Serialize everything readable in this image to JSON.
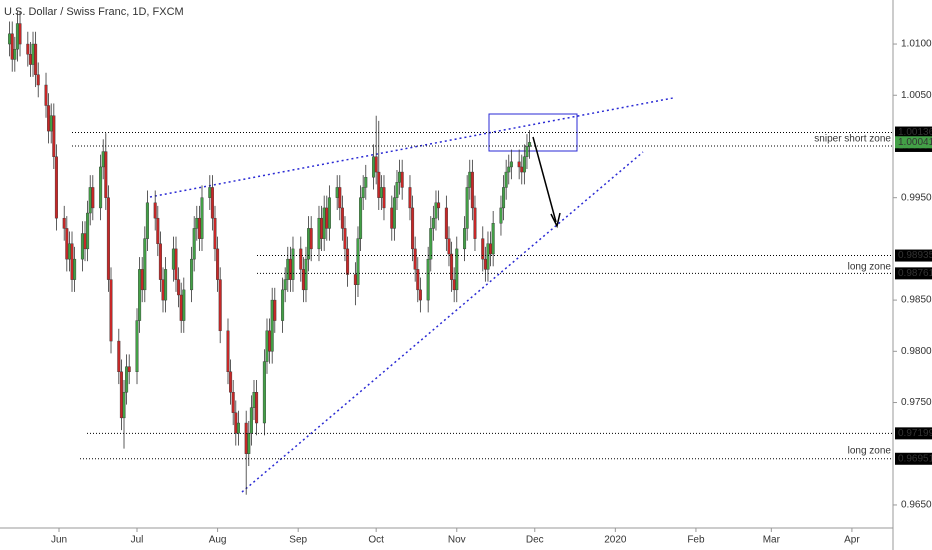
{
  "chart_data": {
    "type": "candlestick",
    "title": "U.S. Dollar / Swiss Franc, 1D, FXCM",
    "up_color": "#43a047",
    "down_color": "#c62828",
    "xlim": [
      129.3,
      472.8
    ],
    "ylim": [
      0.96275,
      1.0143
    ],
    "xticks": [
      {
        "value": 152,
        "label": "Jun"
      },
      {
        "value": 182,
        "label": "Jul"
      },
      {
        "value": 213,
        "label": "Aug"
      },
      {
        "value": 244,
        "label": "Sep"
      },
      {
        "value": 274,
        "label": "Oct"
      },
      {
        "value": 305,
        "label": "Nov"
      },
      {
        "value": 335,
        "label": "Dec"
      },
      {
        "value": 366,
        "label": "2020"
      },
      {
        "value": 397,
        "label": "Feb"
      },
      {
        "value": 426,
        "label": "Mar"
      },
      {
        "value": 457,
        "label": "Apr"
      }
    ],
    "yticks": [
      {
        "value": 1.01,
        "label": "1.01000"
      },
      {
        "value": 1.005,
        "label": "1.00500"
      },
      {
        "value": 0.995,
        "label": "0.99500"
      },
      {
        "value": 0.985,
        "label": "0.98500"
      },
      {
        "value": 0.98,
        "label": "0.98000"
      },
      {
        "value": 0.975,
        "label": "0.97500"
      },
      {
        "value": 0.965,
        "label": "0.96500"
      }
    ],
    "levels": [
      1.00136,
      1.00005,
      0.98935,
      0.98761,
      0.97199,
      0.96951
    ],
    "current_price": 1.00041,
    "annotations": [
      "sniper short zone",
      "long zone",
      "long zone"
    ],
    "x": [
      133,
      134,
      135,
      136,
      137,
      140,
      141,
      142,
      143,
      144,
      147,
      148,
      149,
      150,
      151,
      154,
      155,
      156,
      157,
      158,
      161,
      162,
      163,
      164,
      165,
      168,
      169,
      170,
      171,
      172,
      175,
      176,
      177,
      178,
      179,
      182,
      183,
      184,
      185,
      186,
      189,
      190,
      191,
      192,
      193,
      196,
      197,
      198,
      199,
      200,
      203,
      204,
      205,
      206,
      207,
      210,
      211,
      212,
      213,
      214,
      217,
      218,
      219,
      220,
      221,
      224,
      225,
      226,
      227,
      228,
      231,
      232,
      233,
      234,
      235,
      238,
      239,
      240,
      241,
      242,
      245,
      246,
      247,
      248,
      249,
      252,
      253,
      254,
      255,
      256,
      259,
      260,
      261,
      262,
      263,
      266,
      267,
      268,
      269,
      270,
      273,
      274,
      275,
      276,
      277,
      280,
      281,
      282,
      283,
      284,
      287,
      288,
      289,
      290,
      291,
      294,
      295,
      296,
      297,
      298,
      301,
      302,
      303,
      304,
      305,
      308,
      309,
      310,
      311,
      312,
      315,
      316,
      317,
      318,
      319,
      322,
      323,
      324,
      325,
      326,
      329,
      330,
      331,
      332,
      333
    ],
    "open": [
      1.01,
      1.011,
      1.0085,
      1.0095,
      1.012,
      1.01,
      1.009,
      1.008,
      1.01,
      1.007,
      1.006,
      1.004,
      1.0015,
      1.003,
      0.999,
      0.993,
      0.992,
      0.989,
      0.9905,
      0.987,
      0.989,
      0.9915,
      0.99,
      0.9935,
      0.996,
      0.994,
      0.998,
      0.9995,
      0.995,
      0.987,
      0.981,
      0.978,
      0.9735,
      0.976,
      0.9785,
      0.978,
      0.983,
      0.988,
      0.986,
      0.991,
      0.9945,
      0.993,
      0.9905,
      0.987,
      0.985,
      0.988,
      0.99,
      0.987,
      0.9855,
      0.983,
      0.986,
      0.989,
      0.992,
      0.993,
      0.991,
      0.995,
      0.996,
      0.993,
      0.99,
      0.987,
      0.982,
      0.978,
      0.976,
      0.974,
      0.972,
      0.973,
      0.97,
      0.972,
      0.9745,
      0.976,
      0.973,
      0.979,
      0.982,
      0.98,
      0.985,
      0.983,
      0.986,
      0.987,
      0.989,
      0.987,
      0.99,
      0.988,
      0.986,
      0.989,
      0.992,
      0.99,
      0.993,
      0.991,
      0.994,
      0.992,
      0.995,
      0.996,
      0.994,
      0.992,
      0.99,
      0.9875,
      0.9865,
      0.991,
      0.995,
      0.996,
      0.997,
      0.999,
      0.9975,
      0.995,
      0.996,
      0.994,
      0.992,
      0.995,
      0.9965,
      0.9975,
      0.996,
      0.994,
      0.99,
      0.988,
      0.986,
      0.985,
      0.989,
      0.992,
      0.993,
      0.9945,
      0.994,
      0.991,
      0.9895,
      0.987,
      0.986,
      0.99,
      0.992,
      0.996,
      0.9975,
      0.994,
      0.991,
      0.989,
      0.988,
      0.9905,
      0.9895,
      0.9925,
      0.994,
      0.996,
      0.9975,
      0.998,
      0.9985,
      0.998,
      0.9975,
      0.999,
      1.0
    ],
    "high": [
      1.0122,
      1.0122,
      1.0107,
      1.0132,
      1.0132,
      1.0112,
      1.0102,
      1.0112,
      1.0112,
      1.0082,
      1.0072,
      1.0052,
      1.0042,
      1.0042,
      1.0002,
      0.9942,
      0.9932,
      0.9917,
      0.9917,
      0.9902,
      0.9927,
      0.9927,
      0.9947,
      0.9972,
      0.9972,
      0.9992,
      1.0007,
      1.0013,
      0.9962,
      0.9882,
      0.9822,
      0.9792,
      0.9772,
      0.9797,
      0.9797,
      0.9842,
      0.9892,
      0.9892,
      0.9922,
      0.9957,
      0.9957,
      0.9942,
      0.9917,
      0.9882,
      0.9892,
      0.9912,
      0.9912,
      0.9882,
      0.9867,
      0.9872,
      0.9902,
      0.9932,
      0.9942,
      0.9942,
      0.9962,
      0.9972,
      0.9972,
      0.9942,
      0.9912,
      0.9882,
      0.9832,
      0.9792,
      0.9772,
      0.9752,
      0.9742,
      0.9742,
      0.9732,
      0.9757,
      0.9772,
      0.9772,
      0.9802,
      0.9832,
      0.9832,
      0.9862,
      0.9862,
      0.9872,
      0.9882,
      0.9902,
      0.9902,
      0.9912,
      0.9912,
      0.9892,
      0.9902,
      0.9932,
      0.9932,
      0.9942,
      0.9942,
      0.9952,
      0.9952,
      0.9962,
      0.9972,
      0.9972,
      0.9952,
      0.9932,
      0.9912,
      0.9887,
      0.9922,
      0.9962,
      0.9972,
      0.9982,
      1.0002,
      1.003,
      1.0025,
      0.9972,
      0.9972,
      0.9952,
      0.9962,
      0.9977,
      0.9987,
      0.9987,
      0.9972,
      0.9952,
      0.9912,
      0.9892,
      0.9872,
      0.9902,
      0.9932,
      0.9942,
      0.9957,
      0.9957,
      0.9952,
      0.9922,
      0.9907,
      0.9882,
      0.9912,
      0.9932,
      0.9972,
      0.9987,
      0.9987,
      0.9952,
      0.9922,
      0.9902,
      0.9917,
      0.9917,
      0.9937,
      0.9952,
      0.9972,
      0.9987,
      0.9992,
      0.9997,
      0.9997,
      0.9992,
      1.0002,
      1.0012,
      1.0016
    ],
    "low": [
      1.0088,
      1.0073,
      1.0073,
      1.0083,
      1.0088,
      1.0078,
      1.0068,
      1.0068,
      1.0058,
      1.0048,
      1.0028,
      1.0003,
      1.0003,
      0.9978,
      0.9918,
      0.9908,
      0.9878,
      0.9878,
      0.9858,
      0.9858,
      0.9878,
      0.9888,
      0.9888,
      0.9923,
      0.9928,
      0.9928,
      0.9968,
      0.9938,
      0.9858,
      0.9798,
      0.9768,
      0.9723,
      0.9705,
      0.9748,
      0.9768,
      0.9768,
      0.9818,
      0.9848,
      0.9848,
      0.9898,
      0.9918,
      0.9893,
      0.9858,
      0.9838,
      0.9838,
      0.9868,
      0.9858,
      0.9843,
      0.9818,
      0.9818,
      0.9848,
      0.9878,
      0.9908,
      0.9898,
      0.9898,
      0.9938,
      0.9918,
      0.9888,
      0.9858,
      0.9808,
      0.9768,
      0.9748,
      0.9728,
      0.9708,
      0.9708,
      0.966,
      0.9688,
      0.9708,
      0.9733,
      0.9718,
      0.9718,
      0.9778,
      0.9788,
      0.9788,
      0.9818,
      0.9818,
      0.9848,
      0.9858,
      0.9858,
      0.9858,
      0.9868,
      0.9848,
      0.9848,
      0.9878,
      0.9888,
      0.9888,
      0.9898,
      0.9898,
      0.9908,
      0.9908,
      0.9938,
      0.9928,
      0.9908,
      0.9888,
      0.9863,
      0.9845,
      0.9853,
      0.9898,
      0.9938,
      0.9948,
      0.9958,
      0.9963,
      0.9938,
      0.9938,
      0.9928,
      0.9908,
      0.9908,
      0.9938,
      0.9953,
      0.9948,
      0.9928,
      0.9888,
      0.9868,
      0.9848,
      0.9838,
      0.9838,
      0.9878,
      0.9908,
      0.9918,
      0.9928,
      0.9898,
      0.9883,
      0.9858,
      0.9848,
      0.9848,
      0.9888,
      0.9908,
      0.9948,
      0.9928,
      0.9898,
      0.9878,
      0.9868,
      0.9868,
      0.9883,
      0.9883,
      0.9913,
      0.9928,
      0.9948,
      0.9963,
      0.9968,
      0.9968,
      0.9963,
      0.9963,
      0.9978,
      0.9988
    ],
    "close": [
      1.011,
      1.0085,
      1.0095,
      1.012,
      1.01,
      1.009,
      1.008,
      1.01,
      1.007,
      1.006,
      1.004,
      1.0015,
      1.003,
      0.999,
      0.993,
      0.992,
      0.989,
      0.9905,
      0.987,
      0.989,
      0.9915,
      0.99,
      0.9935,
      0.996,
      0.994,
      0.998,
      0.9995,
      0.995,
      0.987,
      0.981,
      0.978,
      0.9735,
      0.976,
      0.9785,
      0.978,
      0.983,
      0.988,
      0.986,
      0.991,
      0.9945,
      0.993,
      0.9905,
      0.987,
      0.985,
      0.988,
      0.99,
      0.987,
      0.9855,
      0.983,
      0.986,
      0.989,
      0.992,
      0.993,
      0.991,
      0.995,
      0.996,
      0.993,
      0.99,
      0.987,
      0.982,
      0.978,
      0.976,
      0.974,
      0.972,
      0.973,
      0.97,
      0.972,
      0.9745,
      0.976,
      0.973,
      0.979,
      0.982,
      0.98,
      0.985,
      0.983,
      0.986,
      0.987,
      0.989,
      0.987,
      0.99,
      0.988,
      0.986,
      0.989,
      0.992,
      0.99,
      0.993,
      0.991,
      0.994,
      0.992,
      0.995,
      0.996,
      0.994,
      0.992,
      0.99,
      0.9875,
      0.9865,
      0.991,
      0.995,
      0.996,
      0.997,
      0.999,
      0.9975,
      0.995,
      0.996,
      0.994,
      0.992,
      0.995,
      0.9965,
      0.9975,
      0.996,
      0.994,
      0.99,
      0.988,
      0.986,
      0.985,
      0.989,
      0.992,
      0.993,
      0.9945,
      0.994,
      0.991,
      0.9895,
      0.987,
      0.986,
      0.99,
      0.992,
      0.996,
      0.9975,
      0.994,
      0.991,
      0.989,
      0.988,
      0.9905,
      0.9895,
      0.9925,
      0.994,
      0.996,
      0.9975,
      0.998,
      0.9985,
      0.998,
      0.9975,
      0.999,
      1.0,
      1.0004
    ]
  }
}
